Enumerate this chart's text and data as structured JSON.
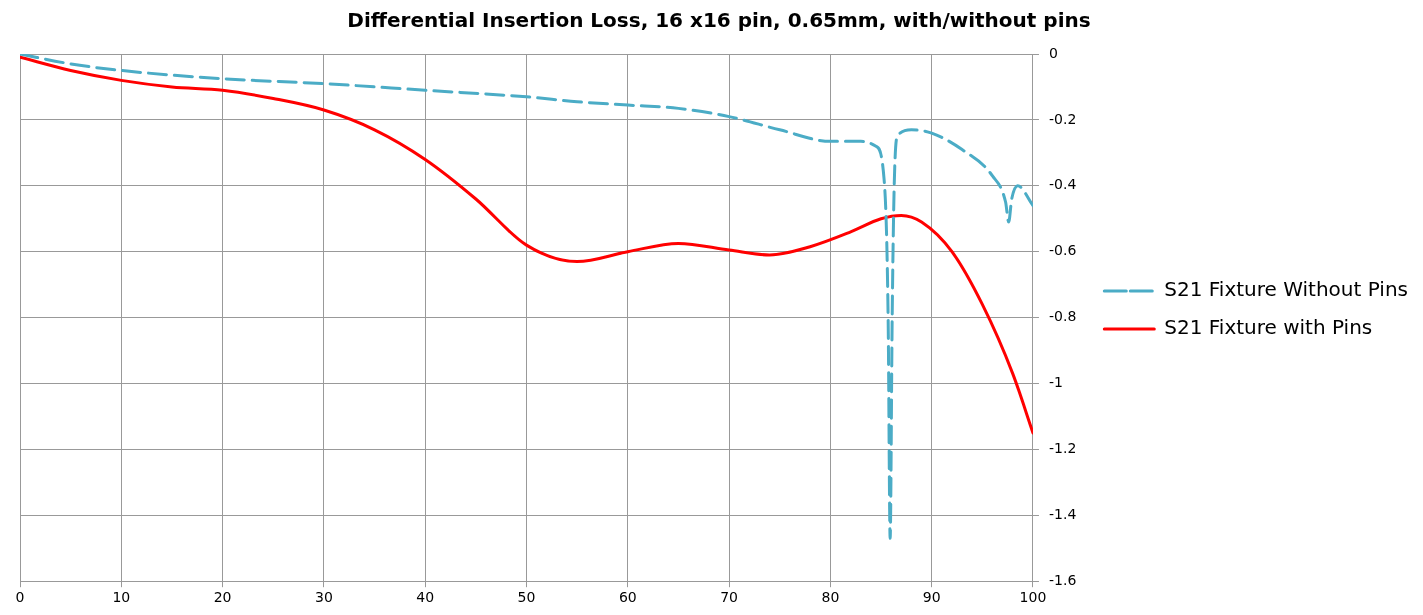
{
  "chart_data": {
    "type": "line",
    "title": "Differential Insertion Loss, 16 x16 pin, 0.65mm, with/without pins",
    "xlim": [
      0,
      100
    ],
    "xticks": [
      0,
      10,
      20,
      30,
      40,
      50,
      60,
      70,
      80,
      90,
      100
    ],
    "ylim": [
      -1.6,
      0
    ],
    "yticks": [
      -1.6,
      -1.4,
      -1.2,
      -1,
      -0.8,
      -0.6,
      -0.4,
      -0.2,
      0
    ],
    "grid": true,
    "legend": "right",
    "marker": "none",
    "series": [
      {
        "name": "S21 Fixture Without Pins",
        "color": "#4bacc6",
        "line_style": "dashed",
        "x": [
          0,
          5,
          10,
          20,
          30,
          40,
          50,
          55,
          60,
          65,
          70,
          75,
          80,
          83,
          84.5,
          85.3,
          85.7,
          85.9,
          86.1,
          86.3,
          86.6,
          88,
          90,
          93,
          96,
          97.3,
          97.6,
          97.9,
          98.5,
          100
        ],
        "values": [
          0,
          -0.03,
          -0.05,
          -0.075,
          -0.09,
          -0.11,
          -0.13,
          -0.145,
          -0.155,
          -0.165,
          -0.19,
          -0.23,
          -0.265,
          -0.265,
          -0.28,
          -0.38,
          -0.8,
          -1.47,
          -0.8,
          -0.4,
          -0.25,
          -0.23,
          -0.24,
          -0.29,
          -0.37,
          -0.45,
          -0.51,
          -0.44,
          -0.4,
          -0.46
        ]
      },
      {
        "name": "S21 Fixture with Pins",
        "color": "#ff0000",
        "line_style": "solid",
        "x": [
          0,
          5,
          10,
          15,
          20,
          25,
          30,
          35,
          40,
          45,
          50,
          55,
          60,
          65,
          70,
          74,
          78,
          82,
          85,
          87,
          89,
          92,
          95,
          98,
          100
        ],
        "values": [
          -0.01,
          -0.05,
          -0.08,
          -0.1,
          -0.11,
          -0.135,
          -0.17,
          -0.23,
          -0.32,
          -0.44,
          -0.58,
          -0.63,
          -0.6,
          -0.575,
          -0.595,
          -0.61,
          -0.585,
          -0.54,
          -0.5,
          -0.49,
          -0.51,
          -0.6,
          -0.76,
          -0.97,
          -1.15
        ]
      }
    ]
  }
}
